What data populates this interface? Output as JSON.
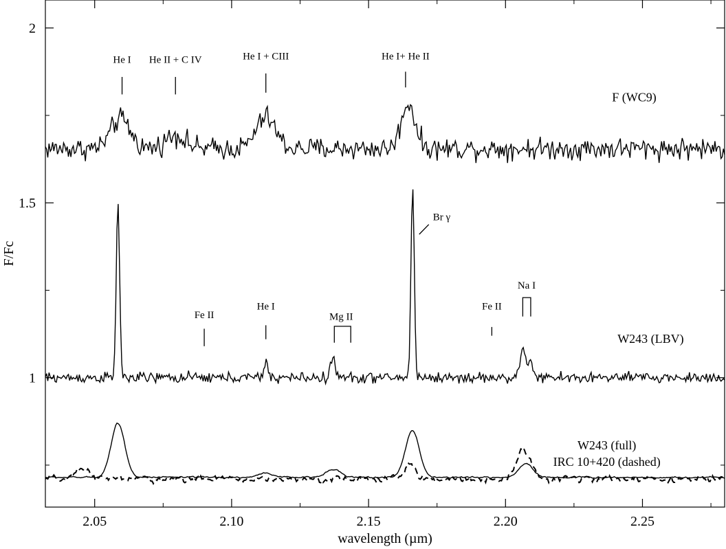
{
  "chart_data": {
    "type": "line",
    "xlabel": "wavelength (µm)",
    "ylabel": "F/Fc",
    "xlim": [
      2.032,
      2.28
    ],
    "ylim": [
      0.63,
      2.08
    ],
    "x_ticks": [
      "2.05",
      "2.10",
      "2.15",
      "2.20",
      "2.25"
    ],
    "x_tick_values": [
      2.05,
      2.1,
      2.15,
      2.2,
      2.25
    ],
    "y_ticks": [
      "1",
      "1.5",
      "2"
    ],
    "y_tick_values": [
      1.0,
      1.5,
      2.0
    ],
    "grid": false,
    "series": [
      {
        "label": "F    (WC9)",
        "style": "solid",
        "baseline": 1.655,
        "noise": 0.022,
        "label_x": 2.247,
        "label_y": 1.79,
        "lines": [
          {
            "center": 2.0595,
            "amp": 0.085,
            "width": 0.0035
          },
          {
            "center": 2.0795,
            "amp": 0.04,
            "width": 0.0035
          },
          {
            "center": 2.1125,
            "amp": 0.09,
            "width": 0.0035
          },
          {
            "center": 2.1645,
            "amp": 0.13,
            "width": 0.0025
          }
        ]
      },
      {
        "label": "W243 (LBV)",
        "style": "solid",
        "baseline": 1.0,
        "noise": 0.011,
        "label_x": 2.253,
        "label_y": 1.1,
        "lines": [
          {
            "center": 2.0585,
            "amp": 0.51,
            "width": 0.0006
          },
          {
            "center": 2.1125,
            "amp": 0.04,
            "width": 0.0008
          },
          {
            "center": 2.137,
            "amp": 0.06,
            "width": 0.0008
          },
          {
            "center": 2.1661,
            "amp": 0.55,
            "width": 0.0006
          },
          {
            "center": 2.2063,
            "amp": 0.09,
            "width": 0.0008
          },
          {
            "center": 2.2089,
            "amp": 0.06,
            "width": 0.0008
          }
        ]
      },
      {
        "label": "W243 (full)",
        "style": "solid",
        "baseline": 0.715,
        "noise": 0.003,
        "label_x": 2.237,
        "label_y": 0.795,
        "lines": [
          {
            "center": 2.0585,
            "amp": 0.155,
            "width": 0.0025
          },
          {
            "center": 2.1125,
            "amp": 0.013,
            "width": 0.0025
          },
          {
            "center": 2.137,
            "amp": 0.025,
            "width": 0.0025
          },
          {
            "center": 2.166,
            "amp": 0.135,
            "width": 0.0025
          },
          {
            "center": 2.2075,
            "amp": 0.04,
            "width": 0.0025
          }
        ]
      },
      {
        "label": "IRC 10+420 (dashed)",
        "style": "dashed",
        "baseline": 0.71,
        "noise": 0.012,
        "label_x": 2.237,
        "label_y": 0.748,
        "lines": [
          {
            "center": 2.046,
            "amp": 0.03,
            "width": 0.0025
          },
          {
            "center": 2.165,
            "amp": 0.04,
            "width": 0.002
          },
          {
            "center": 2.2065,
            "amp": 0.09,
            "width": 0.0025
          }
        ]
      }
    ],
    "annotations": [
      {
        "text": "He I",
        "x": 2.06,
        "y": 1.9,
        "tick_from": 1.86,
        "tick_to": 1.81
      },
      {
        "text": "He II + C IV",
        "x": 2.0795,
        "y": 1.9,
        "tick_from": 1.86,
        "tick_to": 1.81
      },
      {
        "text": "He I + CIII",
        "x": 2.1125,
        "y": 1.91,
        "tick_from": 1.87,
        "tick_to": 1.815
      },
      {
        "text": "He I+ He II",
        "x": 2.1635,
        "y": 1.91,
        "tick_from": 1.875,
        "tick_to": 1.83
      },
      {
        "text": "Fe II",
        "x": 2.09,
        "y": 1.17,
        "tick_from": 1.14,
        "tick_to": 1.09
      },
      {
        "text": "He I",
        "x": 2.1125,
        "y": 1.195,
        "tick_from": 1.15,
        "tick_to": 1.11
      },
      {
        "text": "Fe II",
        "x": 2.195,
        "y": 1.195,
        "tick_from": 1.145,
        "tick_to": 1.12
      },
      {
        "text": "Mg II",
        "x": 2.14,
        "y": 1.165,
        "bracket": [
          2.1375,
          2.1435
        ],
        "bracket_y": 1.147,
        "bracket_drop": 1.1
      },
      {
        "text": "Na I",
        "x": 2.2077,
        "y": 1.255,
        "bracket": [
          2.2063,
          2.2092
        ],
        "bracket_y": 1.229,
        "bracket_drop": 1.175
      },
      {
        "text": "Br γ",
        "x": 2.1735,
        "y": 1.45,
        "anchor": "start",
        "slant": [
          2.1685,
          1.41,
          2.174,
          1.45
        ]
      }
    ]
  }
}
